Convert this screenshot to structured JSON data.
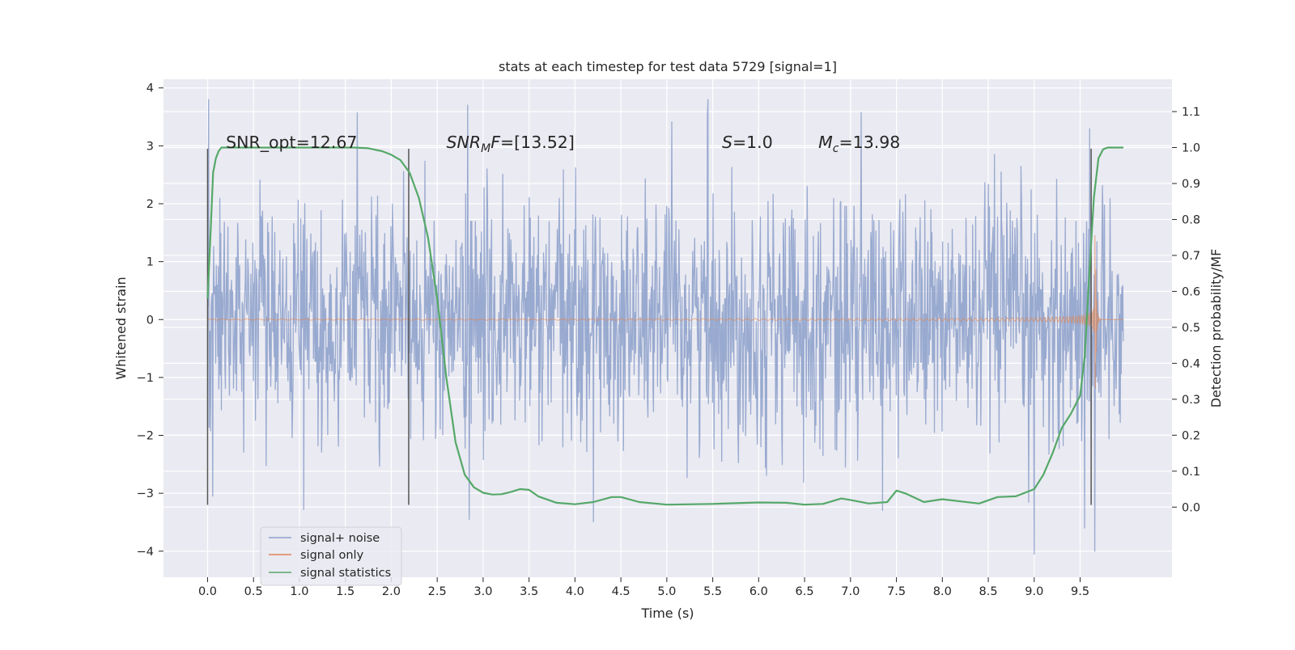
{
  "chart_data": {
    "type": "line",
    "title": "stats at each timestep for test data 5729 [signal=1]",
    "xlabel": "Time (s)",
    "ylabel_left": "Whitened strain",
    "ylabel_right": "Detection probability/MF",
    "x_ticks": [
      "0.0",
      "0.5",
      "1.0",
      "1.5",
      "2.0",
      "2.5",
      "3.0",
      "3.5",
      "4.0",
      "4.5",
      "5.0",
      "5.5",
      "6.0",
      "6.5",
      "7.0",
      "7.5",
      "8.0",
      "8.5",
      "9.0",
      "9.5"
    ],
    "y_left_ticks": [
      "4",
      "3",
      "2",
      "1",
      "0",
      "−1",
      "−2",
      "−3",
      "−4"
    ],
    "y_right_ticks": [
      "1.1",
      "1.0",
      "0.9",
      "0.8",
      "0.7",
      "0.6",
      "0.5",
      "0.4",
      "0.3",
      "0.2",
      "0.1",
      "0.0"
    ],
    "xlim": [
      -0.48,
      10.5
    ],
    "ylim_left": [
      -4.45,
      4.15
    ],
    "ylim_right": [
      -0.195,
      1.19
    ],
    "grid": true,
    "legend_position": "lower-left",
    "annotations": [
      {
        "x": 0.2,
        "y": 1.015,
        "text": "SNR_opt=12.67",
        "italic_prefix": "",
        "sub": "",
        "suffix": ""
      },
      {
        "x": 2.6,
        "y": 1.015,
        "text": "",
        "italic_prefix": "SNR",
        "sub": "M",
        "italic_after_sub": "F",
        "suffix": "=[13.52]"
      },
      {
        "x": 5.6,
        "y": 1.015,
        "text": "",
        "italic_prefix": "S",
        "sub": "",
        "suffix": "=1.0"
      },
      {
        "x": 6.65,
        "y": 1.015,
        "text": "",
        "italic_prefix": "M",
        "sub": "c",
        "suffix": "=13.98"
      }
    ],
    "vertical_markers": [
      {
        "x": 0.0,
        "y_from": -3.2,
        "y_to": 2.95
      },
      {
        "x": 2.19,
        "y_from": -3.2,
        "y_to": 2.95
      },
      {
        "x": 9.62,
        "y_from": -3.2,
        "y_to": 2.95
      }
    ],
    "series": [
      {
        "name": "signal+ noise",
        "color": "#8da0cb",
        "kind": "noise",
        "x_range": [
          0.0,
          9.97
        ],
        "sample_count": 1800,
        "sigma": 1.0,
        "outliers": [
          {
            "x": 0.01,
            "y": 3.8
          },
          {
            "x": 5.45,
            "y": 3.8
          },
          {
            "x": 2.83,
            "y": 3.7
          },
          {
            "x": 1.63,
            "y": 3.57
          },
          {
            "x": 9.0,
            "y": -4.05
          },
          {
            "x": 9.66,
            "y": -4.0
          },
          {
            "x": 1.05,
            "y": -3.28
          },
          {
            "x": 2.85,
            "y": -3.45
          },
          {
            "x": 9.55,
            "y": -3.6
          }
        ]
      },
      {
        "name": "signal only",
        "color": "#dd8452",
        "kind": "chirp",
        "x_range": [
          0.0,
          9.97
        ],
        "merger_time": 9.66,
        "peak_amplitude": 2.35
      },
      {
        "name": "signal statistics",
        "color": "#55a868",
        "kind": "curve",
        "x": [
          0.0,
          0.03,
          0.06,
          0.09,
          0.12,
          0.15,
          0.2,
          0.3,
          0.5,
          0.8,
          1.2,
          1.6,
          1.75,
          1.9,
          2.0,
          2.1,
          2.2,
          2.3,
          2.4,
          2.5,
          2.6,
          2.7,
          2.8,
          2.9,
          3.0,
          3.1,
          3.2,
          3.3,
          3.4,
          3.5,
          3.6,
          3.8,
          4.0,
          4.2,
          4.4,
          4.5,
          4.7,
          5.0,
          5.5,
          6.0,
          6.3,
          6.5,
          6.7,
          6.9,
          7.0,
          7.2,
          7.4,
          7.5,
          7.6,
          7.8,
          8.0,
          8.2,
          8.4,
          8.6,
          8.8,
          9.0,
          9.1,
          9.2,
          9.3,
          9.4,
          9.5,
          9.55,
          9.6,
          9.65,
          9.7,
          9.75,
          9.8,
          9.9,
          9.97
        ],
        "y": [
          0.58,
          0.75,
          0.93,
          0.97,
          0.99,
          1.0,
          1.0,
          1.0,
          1.0,
          1.0,
          1.0,
          1.0,
          0.998,
          0.99,
          0.98,
          0.965,
          0.93,
          0.86,
          0.75,
          0.58,
          0.36,
          0.18,
          0.09,
          0.055,
          0.04,
          0.035,
          0.036,
          0.042,
          0.05,
          0.048,
          0.03,
          0.012,
          0.008,
          0.014,
          0.028,
          0.028,
          0.014,
          0.007,
          0.009,
          0.013,
          0.012,
          0.007,
          0.009,
          0.024,
          0.02,
          0.01,
          0.014,
          0.046,
          0.038,
          0.014,
          0.022,
          0.016,
          0.01,
          0.028,
          0.03,
          0.05,
          0.09,
          0.15,
          0.22,
          0.26,
          0.31,
          0.42,
          0.65,
          0.86,
          0.97,
          0.995,
          1.0,
          1.0,
          1.0
        ]
      }
    ]
  }
}
